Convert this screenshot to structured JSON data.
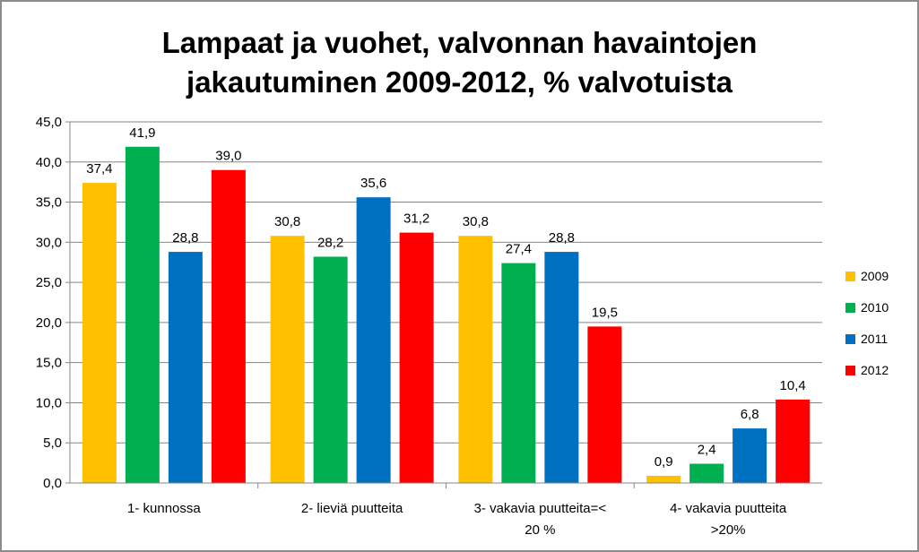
{
  "chart_data": {
    "type": "bar",
    "title_lines": [
      "Lampaat ja vuohet, valvonnan havaintojen",
      "jakautuminen 2009-2012, % valvotuista"
    ],
    "categories": [
      [
        "1- kunnossa"
      ],
      [
        "2- lieviä puutteita"
      ],
      [
        "3- vakavia puutteita=<",
        "20 %"
      ],
      [
        "4- vakavia puutteita",
        ">20%"
      ]
    ],
    "series": [
      {
        "name": "2009",
        "color": "#FFC000",
        "values": [
          37.4,
          30.8,
          30.8,
          0.9
        ]
      },
      {
        "name": "2010",
        "color": "#00B050",
        "values": [
          41.9,
          28.2,
          27.4,
          2.4
        ]
      },
      {
        "name": "2011",
        "color": "#0070C0",
        "values": [
          28.8,
          35.6,
          28.8,
          6.8
        ]
      },
      {
        "name": "2012",
        "color": "#FF0000",
        "values": [
          39.0,
          31.2,
          19.5,
          10.4
        ]
      }
    ],
    "ylim": [
      0,
      45
    ],
    "y_ticks": [
      0,
      5,
      10,
      15,
      20,
      25,
      30,
      35,
      40,
      45
    ],
    "decimal_separator": ",",
    "grid": true,
    "legend_position": "right"
  }
}
